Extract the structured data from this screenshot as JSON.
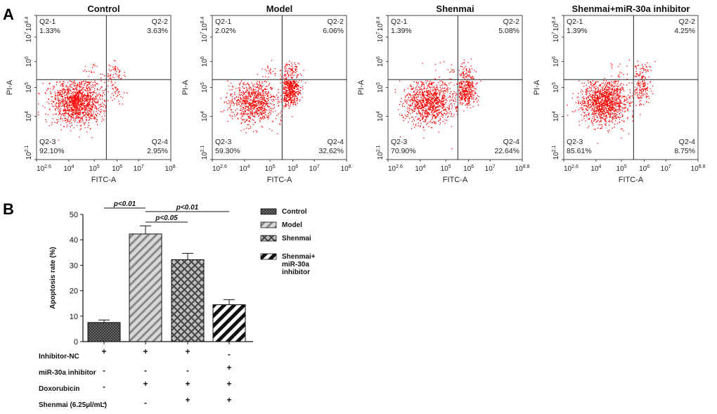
{
  "panel_a_label": "A",
  "panel_b_label": "B",
  "chart_data": [
    {
      "type": "scatter",
      "title": "Control",
      "xlabel": "FITC-A",
      "ylabel": "PI-A",
      "x_scale": "log",
      "y_scale": "log",
      "x_ticks": [
        "10^2.6",
        "10^4",
        "10^5",
        "10^6",
        "10^7",
        "10^8."
      ],
      "y_ticks": [
        "10^2.1",
        "10^4",
        "10^5",
        "10^6",
        "10^7",
        "10^8.4"
      ],
      "quadrants": [
        {
          "name": "Q2-1",
          "value": "1.33%"
        },
        {
          "name": "Q2-2",
          "value": "3.63%"
        },
        {
          "name": "Q2-3",
          "value": "92.10%"
        },
        {
          "name": "Q2-4",
          "value": "2.95%"
        }
      ],
      "color": "#ff0000"
    },
    {
      "type": "scatter",
      "title": "Model",
      "xlabel": "FITC-A",
      "ylabel": "PI-A",
      "x_scale": "log",
      "y_scale": "log",
      "x_ticks": [
        "10^2.6",
        "10^4",
        "10^5",
        "10^6",
        "10^7",
        "10^8."
      ],
      "y_ticks": [
        "10^2.1",
        "10^4",
        "10^5",
        "10^6",
        "10^7",
        "10^8.4"
      ],
      "quadrants": [
        {
          "name": "Q2-1",
          "value": "2.02%"
        },
        {
          "name": "Q2-2",
          "value": "6.06%"
        },
        {
          "name": "Q2-3",
          "value": "59.30%"
        },
        {
          "name": "Q2-4",
          "value": "32.62%"
        }
      ],
      "color": "#ff0000"
    },
    {
      "type": "scatter",
      "title": "Shenmai",
      "xlabel": "FITC-A",
      "ylabel": "PI-A",
      "x_scale": "log",
      "y_scale": "log",
      "x_ticks": [
        "10^2.6",
        "10^4",
        "10^5",
        "10^6",
        "10^7",
        "10^8.8"
      ],
      "y_ticks": [
        "10^2.1",
        "10^4",
        "10^5",
        "10^6",
        "10^7",
        "10^8.4"
      ],
      "quadrants": [
        {
          "name": "Q2-1",
          "value": "1.39%"
        },
        {
          "name": "Q2-2",
          "value": "5.08%"
        },
        {
          "name": "Q2-3",
          "value": "70.90%"
        },
        {
          "name": "Q2-4",
          "value": "22.64%"
        }
      ],
      "color": "#ff0000"
    },
    {
      "type": "scatter",
      "title": "Shenmai+miR-30a inhibitor",
      "xlabel": "FITC-A",
      "ylabel": "PI-A",
      "x_scale": "log",
      "y_scale": "log",
      "x_ticks": [
        "10^2.6",
        "10^4",
        "10^5",
        "10^6",
        "10^7",
        "10^8.8"
      ],
      "y_ticks": [
        "10^2.1",
        "10^4",
        "10^5",
        "10^6",
        "10^7",
        "10^8.4"
      ],
      "quadrants": [
        {
          "name": "Q2-1",
          "value": "1.39%"
        },
        {
          "name": "Q2-2",
          "value": "4.25%"
        },
        {
          "name": "Q2-3",
          "value": "85.61%"
        },
        {
          "name": "Q2-4",
          "value": "8.75%"
        }
      ],
      "color": "#ff0000"
    },
    {
      "type": "bar",
      "ylabel": "Apoptosis rate (%)",
      "ylim": [
        0,
        50
      ],
      "yticks": [
        0,
        10,
        20,
        30,
        40,
        50
      ],
      "categories": [
        "Control",
        "Model",
        "Shenmai",
        "Shenmai+ miR-30a inhibitor"
      ],
      "values": [
        7.5,
        42.3,
        32.2,
        14.5
      ],
      "errors": [
        1.0,
        3.2,
        2.5,
        2.0
      ],
      "legend": [
        "Control",
        "Model",
        "Shenmai",
        "Shenmai+\nmiR-30a\ninhibitor"
      ],
      "significance": [
        {
          "between": [
            "Control",
            "Model"
          ],
          "label": "p<0.01"
        },
        {
          "between": [
            "Model",
            "Shenmai"
          ],
          "label": "p<0.05"
        },
        {
          "between": [
            "Model",
            "Shenmai+ miR-30a inhibitor"
          ],
          "label": "p<0.01"
        }
      ],
      "treatments": [
        {
          "label": "Inhibitor-NC",
          "values": [
            "+",
            "+",
            "+",
            "-"
          ]
        },
        {
          "label": "miR-30a inhibitor",
          "values": [
            "-",
            "-",
            "-",
            "+"
          ]
        },
        {
          "label": "Doxorubicin",
          "values": [
            "-",
            "+",
            "+",
            "+"
          ]
        },
        {
          "label": "Shenmai (6.25µl/mL)",
          "values": [
            "-",
            "-",
            "+",
            "+"
          ]
        }
      ]
    }
  ]
}
